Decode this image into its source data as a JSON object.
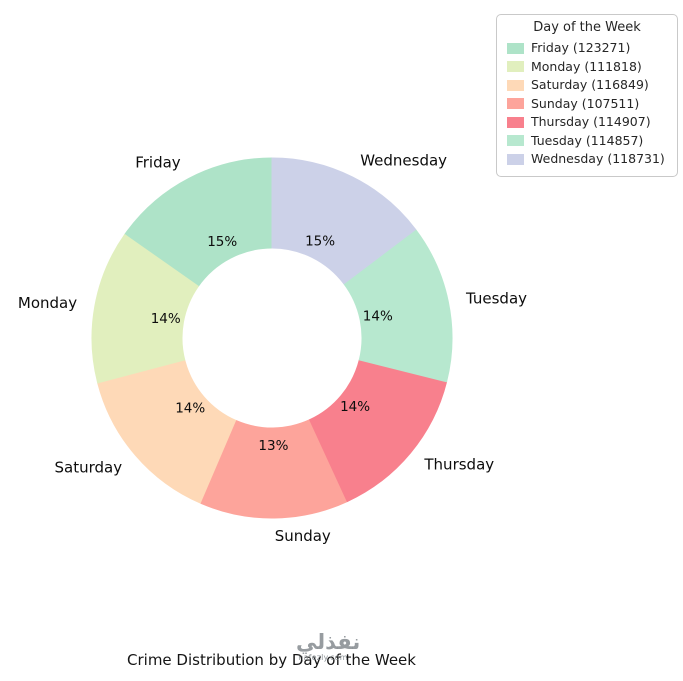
{
  "figure": {
    "title": "Crime Distribution by Day of the Week"
  },
  "watermark": {
    "name_arabic": "نفذلي",
    "site": "nafezly.com"
  },
  "legend": {
    "title": "Day of the Week",
    "items": [
      {
        "label": "Friday (123271)"
      },
      {
        "label": "Monday (111818)"
      },
      {
        "label": "Saturday (116849)"
      },
      {
        "label": "Sunday (107511)"
      },
      {
        "label": "Thursday (114907)"
      },
      {
        "label": "Tuesday (114857)"
      },
      {
        "label": "Wednesday (118731)"
      }
    ]
  },
  "chart_data": {
    "type": "pie",
    "subtype": "donut",
    "title": "Crime Distribution by Day of the Week",
    "legend_title": "Day of the Week",
    "legend_position": "upper right",
    "categories": [
      "Friday",
      "Monday",
      "Saturday",
      "Sunday",
      "Thursday",
      "Tuesday",
      "Wednesday"
    ],
    "values": [
      123271,
      111818,
      116849,
      107511,
      114907,
      114857,
      118731
    ],
    "percent_labels": [
      "15%",
      "14%",
      "14%",
      "13%",
      "14%",
      "14%",
      "15%"
    ],
    "colors": [
      "#aee3c8",
      "#e1efbe",
      "#fed9b7",
      "#fda49b",
      "#f8808d",
      "#b7e8cf",
      "#ccd1e8"
    ],
    "start_angle": 90,
    "direction": "counterclockwise",
    "inner_radius_ratio": 0.5,
    "label_distance": 1.1,
    "pct_distance": 0.6
  }
}
